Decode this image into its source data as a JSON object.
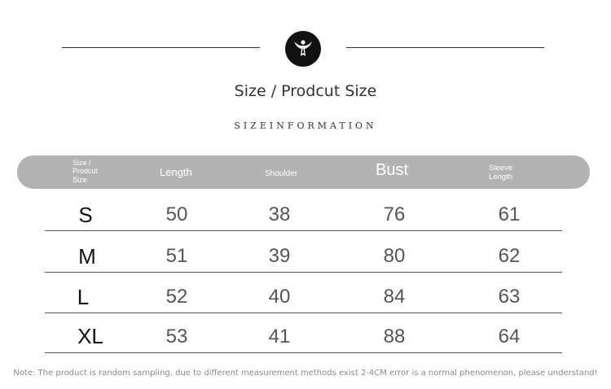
{
  "title": "Size / Prodcut Size",
  "subtitle": "SIZEINFORMATION",
  "table": {
    "headers": {
      "size": [
        "Size /",
        "Prodcut",
        "Size"
      ],
      "length": "Length",
      "shoulder": "Shoulder",
      "bust": "Bust",
      "sleeve": [
        "Sleeve",
        "Length"
      ]
    },
    "rows": [
      {
        "size": "S",
        "length": "50",
        "shoulder": "38",
        "bust": "76",
        "sleeve": "61"
      },
      {
        "size": "M",
        "length": "51",
        "shoulder": "39",
        "bust": "80",
        "sleeve": "62"
      },
      {
        "size": "L",
        "length": "52",
        "shoulder": "40",
        "bust": "84",
        "sleeve": "63"
      },
      {
        "size": "XL",
        "length": "53",
        "shoulder": "41",
        "bust": "88",
        "sleeve": "64"
      }
    ]
  },
  "note": "Note: The product is random sampling, due to different measurement methods exist 2-4CM error is a normal phenomenon, please understand!",
  "logo_icon": "winged-figure-icon"
}
